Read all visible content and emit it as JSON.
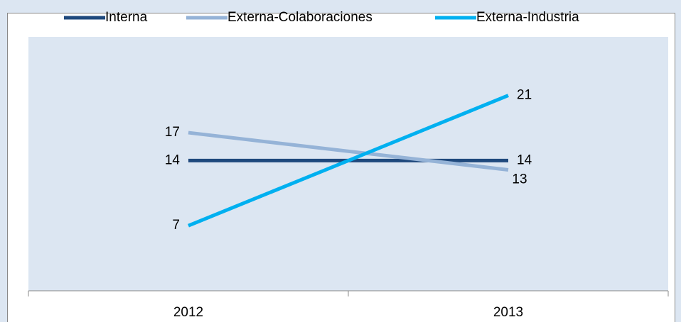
{
  "chart_data": {
    "type": "line",
    "categories": [
      "2012",
      "2013"
    ],
    "series": [
      {
        "name": "Interna",
        "color": "#1f497d",
        "values": [
          14,
          14
        ]
      },
      {
        "name": "Externa-Colaboraciones",
        "color": "#95b3d7",
        "values": [
          17,
          13
        ]
      },
      {
        "name": "Externa-Industria",
        "color": "#00b0f0",
        "values": [
          7,
          21
        ]
      }
    ],
    "ylim": [
      0,
      27.3
    ],
    "legend": "top"
  }
}
